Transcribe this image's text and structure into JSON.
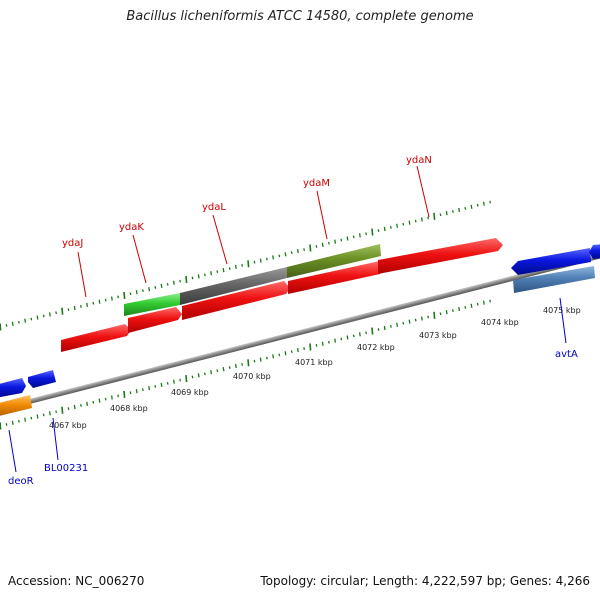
{
  "title": "Bacillus licheniformis ATCC 14580, complete genome",
  "footer": {
    "accession": "Accession: NC_006270",
    "summary": "Topology: circular; Length: 4,222,597 bp; Genes: 4,266"
  },
  "colors": {
    "backbone": "#888888",
    "tick_upper": "#1a7a1a",
    "tick_lower": "#1a7a1a",
    "label_upper": "#cc0000",
    "label_lower": "#0000cc",
    "gene_red": "#ee1111",
    "gene_blue": "#0a18e0",
    "gene_steel": "#4f7fb5",
    "gene_orange": "#f28a00",
    "gene_green": "#33cc33",
    "gene_gray": "#666666",
    "gene_olive": "#6b8e23"
  },
  "scale_labels": [
    "4067 kbp",
    "4068 kbp",
    "4069 kbp",
    "4070 kbp",
    "4071 kbp",
    "4072 kbp",
    "4073 kbp",
    "4074 kbp",
    "4075 kbp"
  ],
  "upper_gene_labels": [
    "ydaJ",
    "ydaK",
    "ydaL",
    "ydaM",
    "ydaN"
  ],
  "lower_gene_labels": [
    "deoR",
    "BL00231",
    "avtA"
  ]
}
